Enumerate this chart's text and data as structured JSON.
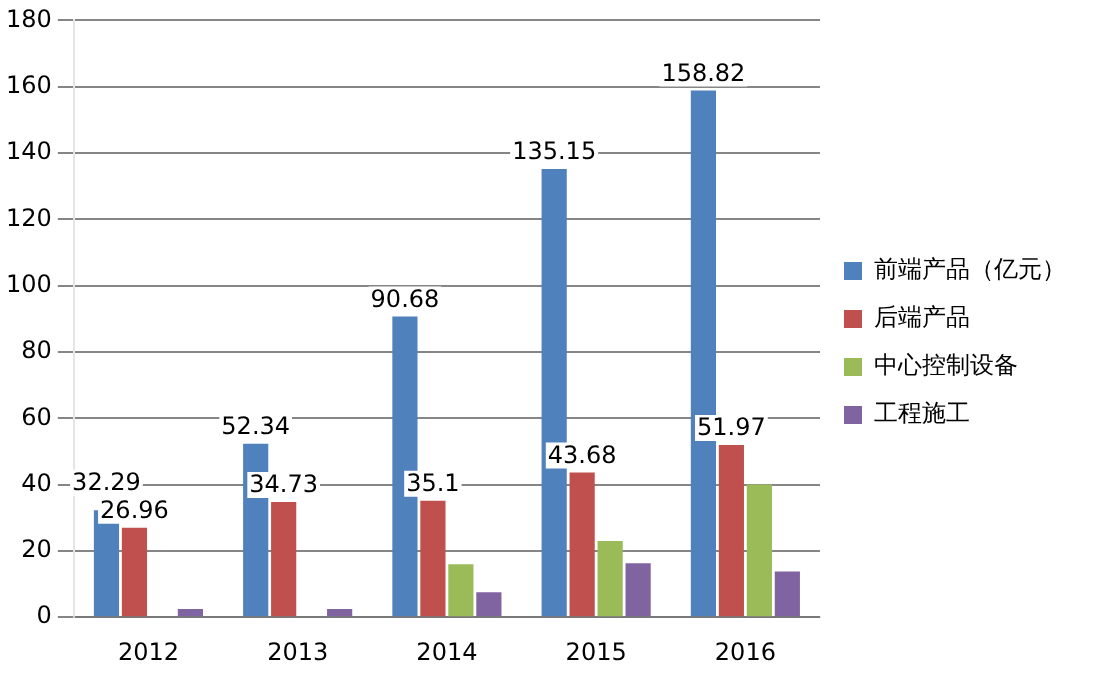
{
  "chart_data": {
    "type": "bar",
    "categories": [
      "2012",
      "2013",
      "2014",
      "2015",
      "2016"
    ],
    "series": [
      {
        "name": "前端产品（亿元）",
        "color": "#4f81bd",
        "values": [
          32.29,
          52.34,
          90.68,
          135.15,
          158.82
        ],
        "value_labels": [
          "32.29",
          "52.34",
          "90.68",
          "135.15",
          "158.82"
        ]
      },
      {
        "name": "后端产品",
        "color": "#c0504d",
        "values": [
          26.96,
          34.73,
          35.1,
          43.68,
          51.97
        ],
        "value_labels": [
          "26.96",
          "34.73",
          "35.1",
          "43.68",
          "51.97"
        ]
      },
      {
        "name": "中心控制设备",
        "color": "#9bbb59",
        "values": [
          null,
          null,
          16,
          23,
          40
        ]
      },
      {
        "name": "工程施工",
        "color": "#8064a2",
        "values": [
          2.5,
          2.5,
          7.5,
          16.3,
          13.8
        ]
      }
    ],
    "ylim": [
      0,
      180
    ],
    "yticks": [
      0,
      20,
      40,
      60,
      80,
      100,
      120,
      140,
      160,
      180
    ],
    "grid": "y",
    "legend": "right"
  }
}
